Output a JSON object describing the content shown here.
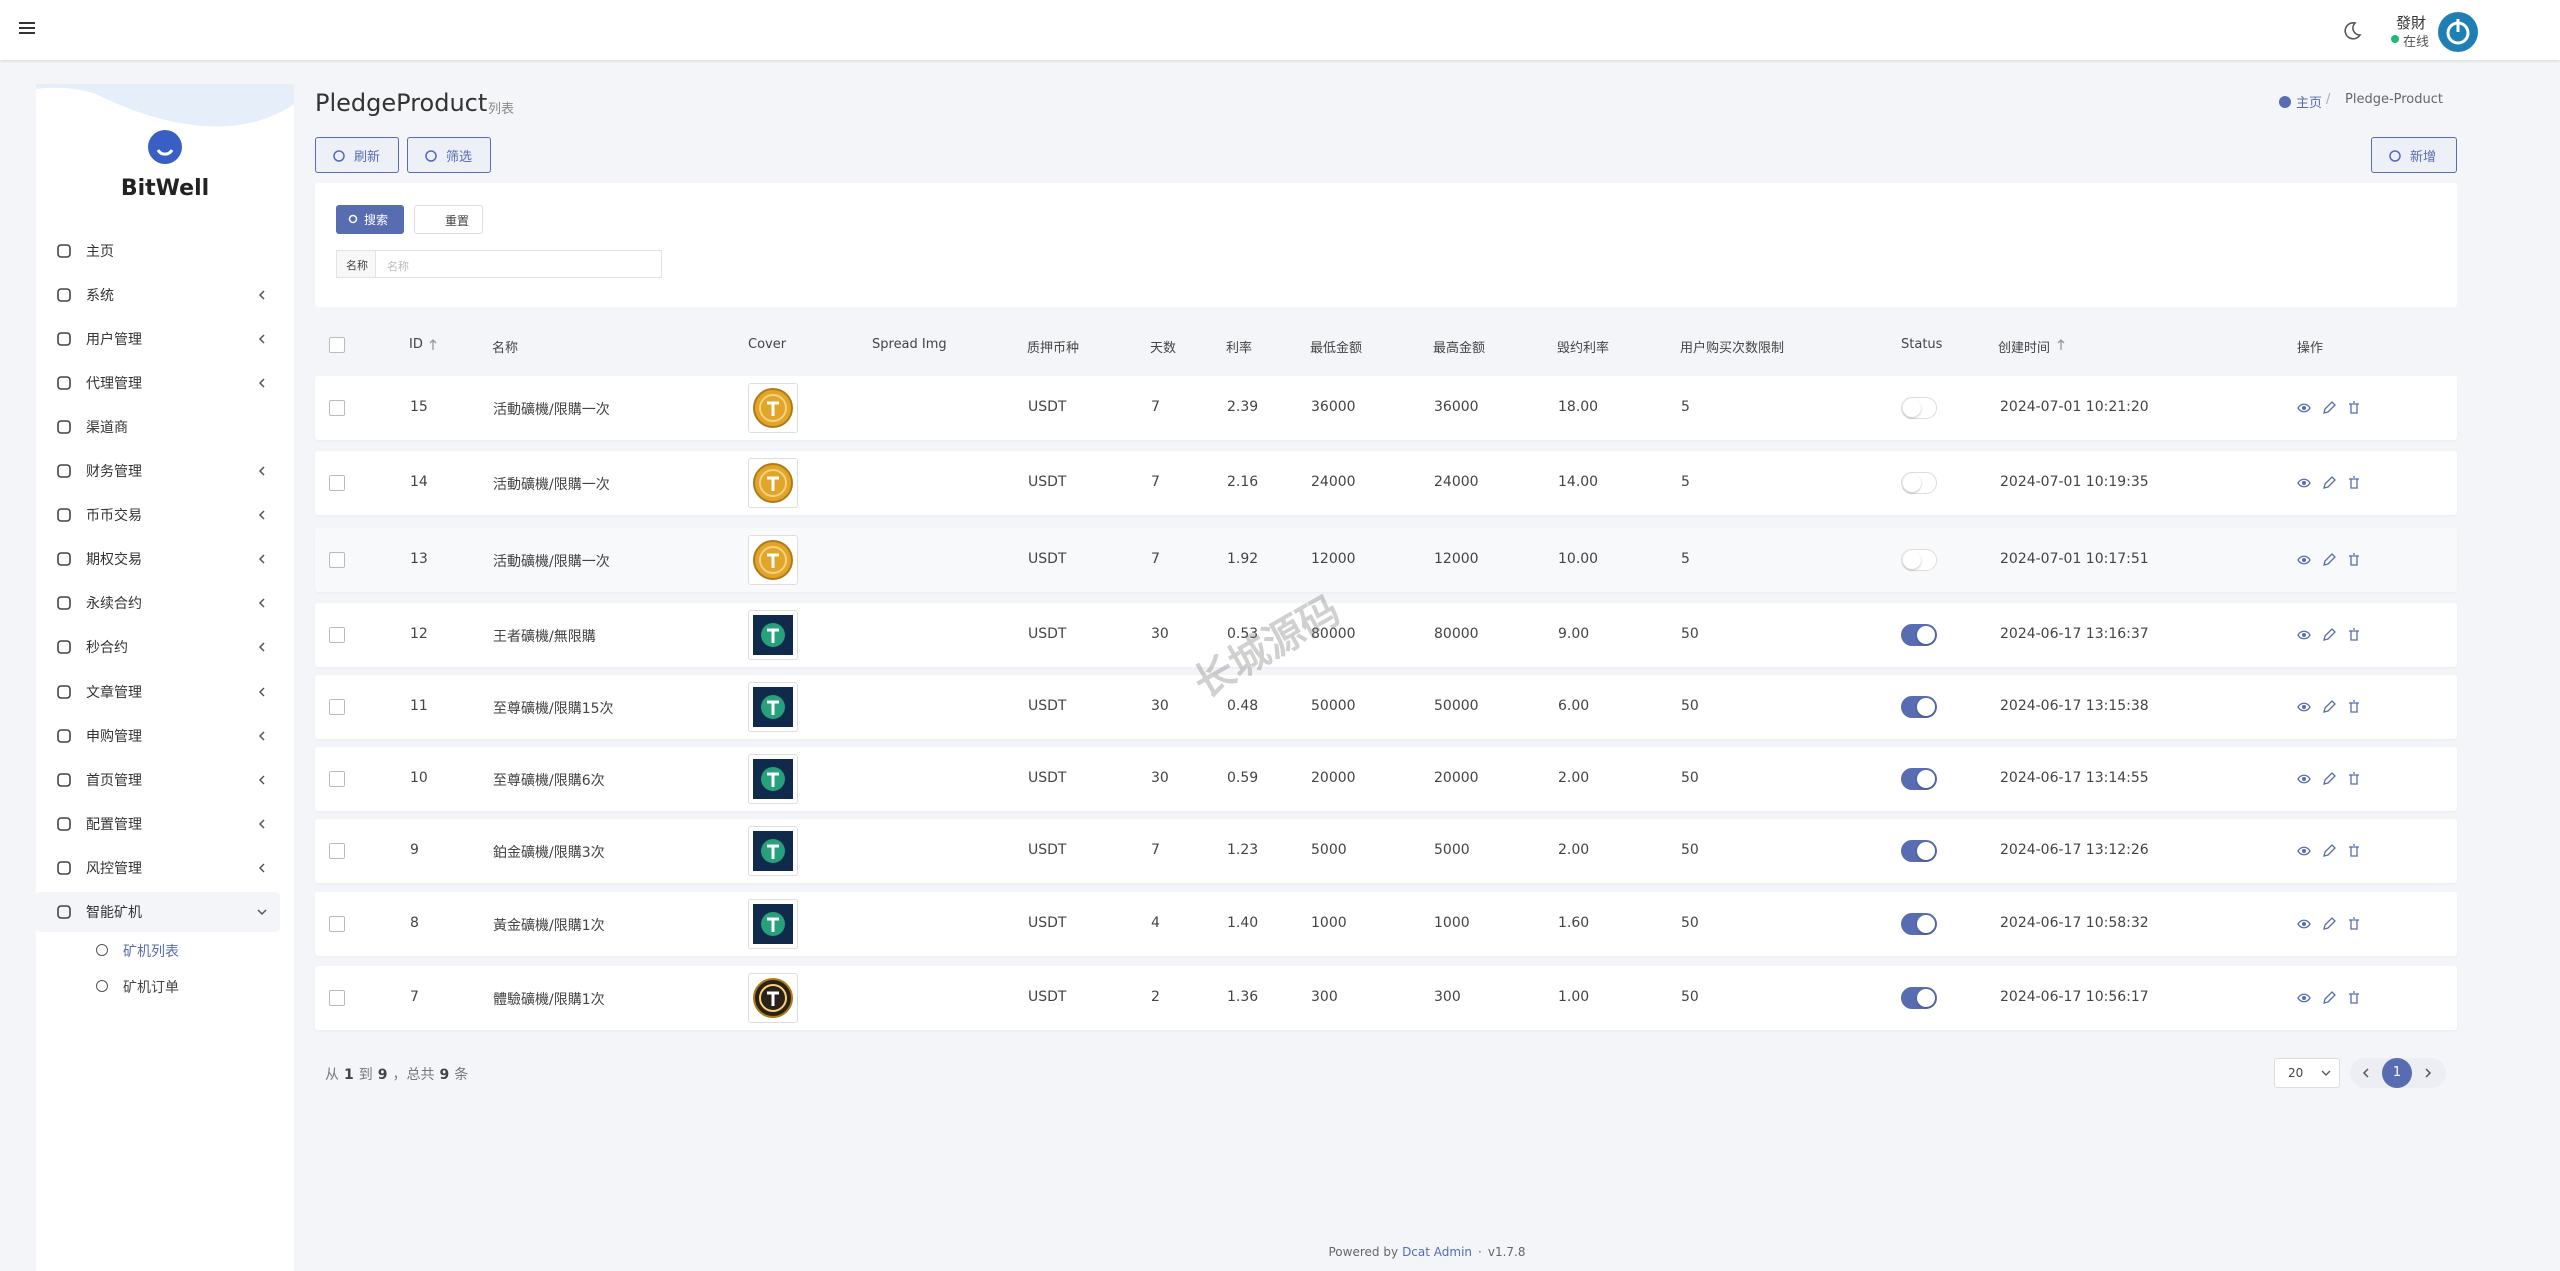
{
  "topbar": {
    "user_name": "發財",
    "status": "在线"
  },
  "sidebar": {
    "brand": "BitWell",
    "menu": [
      "主页",
      "系统",
      "用户管理",
      "代理管理",
      "渠道商",
      "财务管理",
      "币币交易",
      "期权交易",
      "永续合约",
      "秒合约",
      "文章管理",
      "申购管理",
      "首页管理",
      "配置管理",
      "风控管理",
      "智能矿机"
    ],
    "submenu": [
      "矿机列表",
      "矿机订单"
    ]
  },
  "header": {
    "title": "PledgeProduct",
    "subtitle": "列表",
    "breadcrumb": [
      "主页",
      "Pledge-Product"
    ]
  },
  "toolbar": {
    "refresh": "刷新",
    "filter": "筛选",
    "create": "新增"
  },
  "filter": {
    "search": "搜索",
    "reset": "重置",
    "field_label": "名称",
    "placeholder": "名称"
  },
  "table": {
    "columns": [
      "ID",
      "名称",
      "Cover",
      "Spread Img",
      "质押币种",
      "天数",
      "利率",
      "最低金额",
      "最高金额",
      "毁约利率",
      "用户购买次数限制",
      "Status",
      "创建时间",
      "操作"
    ],
    "rows": [
      {
        "id": 15,
        "name": "活動礦機/限購一次",
        "cover_color": "#e2a52c",
        "currency": "USDT",
        "days": 7,
        "rate": "2.39",
        "min": 36000,
        "max": 36000,
        "breach_rate": "18.00",
        "limit": 5,
        "status": false,
        "created": "2024-07-01 10:21:20"
      },
      {
        "id": 14,
        "name": "活動礦機/限購一次",
        "cover_color": "#e2a52c",
        "currency": "USDT",
        "days": 7,
        "rate": "2.16",
        "min": 24000,
        "max": 24000,
        "breach_rate": "14.00",
        "limit": 5,
        "status": false,
        "created": "2024-07-01 10:19:35"
      },
      {
        "id": 13,
        "name": "活動礦機/限購一次",
        "cover_color": "#e2a52c",
        "currency": "USDT",
        "days": 7,
        "rate": "1.92",
        "min": 12000,
        "max": 12000,
        "breach_rate": "10.00",
        "limit": 5,
        "status": false,
        "created": "2024-07-01 10:17:51"
      },
      {
        "id": 12,
        "name": "王者礦機/無限購",
        "cover_color": "#0f2a4a",
        "currency": "USDT",
        "days": 30,
        "rate": "0.53",
        "min": 80000,
        "max": 80000,
        "breach_rate": "9.00",
        "limit": 50,
        "status": true,
        "created": "2024-06-17 13:16:37"
      },
      {
        "id": 11,
        "name": "至尊礦機/限購15次",
        "cover_color": "#0f2a4a",
        "currency": "USDT",
        "days": 30,
        "rate": "0.48",
        "min": 50000,
        "max": 50000,
        "breach_rate": "6.00",
        "limit": 50,
        "status": true,
        "created": "2024-06-17 13:15:38"
      },
      {
        "id": 10,
        "name": "至尊礦機/限購6次",
        "cover_color": "#0f2a4a",
        "currency": "USDT",
        "days": 30,
        "rate": "0.59",
        "min": 20000,
        "max": 20000,
        "breach_rate": "2.00",
        "limit": 50,
        "status": true,
        "created": "2024-06-17 13:14:55"
      },
      {
        "id": 9,
        "name": "鉑金礦機/限購3次",
        "cover_color": "#0f2a4a",
        "currency": "USDT",
        "days": 7,
        "rate": "1.23",
        "min": 5000,
        "max": 5000,
        "breach_rate": "2.00",
        "limit": 50,
        "status": true,
        "created": "2024-06-17 13:12:26"
      },
      {
        "id": 8,
        "name": "黃金礦機/限購1次",
        "cover_color": "#0f2a4a",
        "currency": "USDT",
        "days": 4,
        "rate": "1.40",
        "min": 1000,
        "max": 1000,
        "breach_rate": "1.60",
        "limit": 50,
        "status": true,
        "created": "2024-06-17 10:58:32"
      },
      {
        "id": 7,
        "name": "體驗礦機/限購1次",
        "cover_color": "#2a2218",
        "currency": "USDT",
        "days": 2,
        "rate": "1.36",
        "min": 300,
        "max": 300,
        "breach_rate": "1.00",
        "limit": 50,
        "status": true,
        "created": "2024-06-17 10:56:17"
      }
    ]
  },
  "pagination": {
    "from_word": "从",
    "from": 1,
    "to_word": "到",
    "to": 9,
    "total_word": "，总共",
    "total": 9,
    "suffix": "条",
    "per_page": "20",
    "current": 1
  },
  "watermark": "长城源码",
  "footer": {
    "powered": "Powered by",
    "link": "Dcat Admin",
    "version": "v1.7.8"
  }
}
